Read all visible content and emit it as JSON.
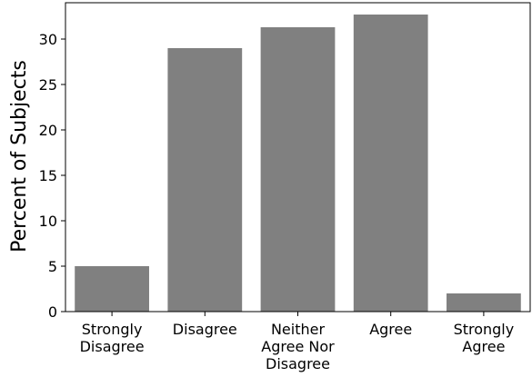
{
  "chart_data": {
    "type": "bar",
    "title": "",
    "xlabel": "",
    "ylabel": "Percent of Subjects",
    "ylim": [
      0,
      34
    ],
    "yticks": [
      0,
      5,
      10,
      15,
      20,
      25,
      30
    ],
    "grid": false,
    "bar_color": "#808080",
    "categories": [
      [
        "Strongly",
        "Disagree"
      ],
      [
        "Disagree"
      ],
      [
        "Neither",
        "Agree Nor",
        "Disagree"
      ],
      [
        "Agree"
      ],
      [
        "Strongly",
        "Agree"
      ]
    ],
    "values": [
      5.0,
      29.0,
      31.3,
      32.7,
      2.0
    ]
  }
}
